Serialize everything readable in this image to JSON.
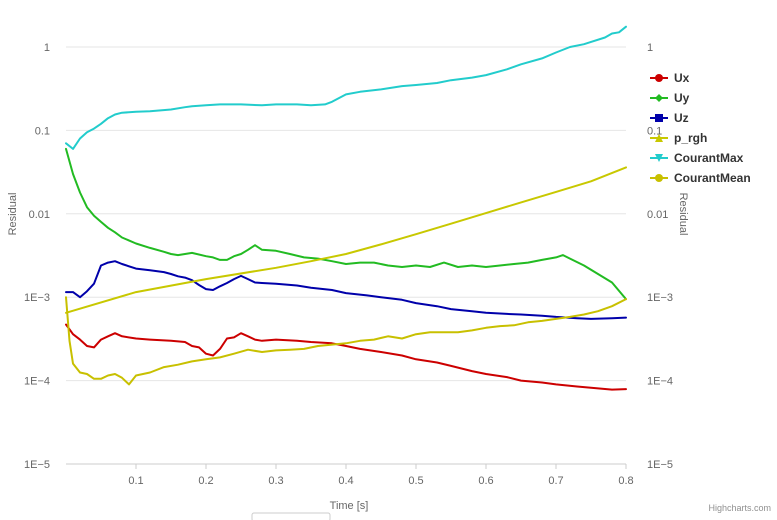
{
  "chart_data": {
    "type": "line",
    "x_axis": {
      "label": "Time [s]",
      "range": [
        0,
        0.8
      ],
      "ticks": [
        "0.1",
        "0.2",
        "0.3",
        "0.4",
        "0.5",
        "0.6",
        "0.7",
        "0.8"
      ]
    },
    "y_axis_left": {
      "label": "Residual",
      "scale": "log",
      "range": [
        1e-05,
        1
      ],
      "ticks": [
        "1E−5",
        "1E−4",
        "1E−3",
        "0.01",
        "0.1",
        "1"
      ]
    },
    "y_axis_right": {
      "label": "Residual",
      "scale": "log",
      "range": [
        1e-05,
        1
      ],
      "ticks": [
        "1E−5",
        "1E−4",
        "1E−3",
        "0.01",
        "0.1",
        "1"
      ]
    },
    "grid": true,
    "legend_position": "right",
    "credits": "Highcharts.com",
    "series": [
      {
        "name": "Ux",
        "color": "#cc0000",
        "marker": "circle",
        "x": [
          0,
          0.01,
          0.02,
          0.03,
          0.04,
          0.05,
          0.06,
          0.07,
          0.08,
          0.1,
          0.12,
          0.15,
          0.17,
          0.18,
          0.19,
          0.2,
          0.21,
          0.22,
          0.23,
          0.24,
          0.25,
          0.26,
          0.27,
          0.28,
          0.3,
          0.33,
          0.35,
          0.38,
          0.4,
          0.42,
          0.45,
          0.48,
          0.5,
          0.53,
          0.55,
          0.58,
          0.6,
          0.63,
          0.65,
          0.68,
          0.7,
          0.73,
          0.75,
          0.78,
          0.8
        ],
        "y": [
          0.00047,
          0.00036,
          0.00031,
          0.00026,
          0.00025,
          0.00031,
          0.00034,
          0.00037,
          0.00034,
          0.00032,
          0.00031,
          0.0003,
          0.00029,
          0.00026,
          0.00025,
          0.00021,
          0.0002,
          0.00024,
          0.00032,
          0.00033,
          0.00037,
          0.00034,
          0.00031,
          0.0003,
          0.00031,
          0.0003,
          0.00029,
          0.00028,
          0.00026,
          0.00024,
          0.00022,
          0.0002,
          0.00018,
          0.000165,
          0.00015,
          0.00013,
          0.00012,
          0.00011,
          0.0001,
          9.5e-05,
          9e-05,
          8.5e-05,
          8.2e-05,
          7.8e-05,
          7.9e-05
        ]
      },
      {
        "name": "Uy",
        "color": "#22bb22",
        "marker": "diamond",
        "x": [
          0,
          0.01,
          0.02,
          0.03,
          0.04,
          0.05,
          0.06,
          0.07,
          0.08,
          0.1,
          0.12,
          0.14,
          0.15,
          0.16,
          0.17,
          0.18,
          0.2,
          0.21,
          0.22,
          0.23,
          0.24,
          0.25,
          0.26,
          0.27,
          0.28,
          0.3,
          0.32,
          0.34,
          0.36,
          0.38,
          0.4,
          0.42,
          0.44,
          0.46,
          0.48,
          0.5,
          0.52,
          0.54,
          0.56,
          0.58,
          0.6,
          0.62,
          0.64,
          0.66,
          0.68,
          0.7,
          0.71,
          0.72,
          0.74,
          0.76,
          0.78,
          0.8
        ],
        "y": [
          0.06,
          0.03,
          0.018,
          0.012,
          0.0095,
          0.008,
          0.0068,
          0.006,
          0.0052,
          0.0044,
          0.0039,
          0.0035,
          0.0033,
          0.0032,
          0.0033,
          0.0034,
          0.0031,
          0.003,
          0.0028,
          0.0028,
          0.0031,
          0.0033,
          0.0037,
          0.0042,
          0.0037,
          0.0036,
          0.0033,
          0.003,
          0.0029,
          0.0027,
          0.0025,
          0.0026,
          0.0026,
          0.0024,
          0.0023,
          0.0024,
          0.0023,
          0.0026,
          0.0023,
          0.0024,
          0.0023,
          0.0024,
          0.0025,
          0.0026,
          0.0028,
          0.003,
          0.0032,
          0.0029,
          0.0024,
          0.0019,
          0.0015,
          0.00095
        ]
      },
      {
        "name": "Uz",
        "color": "#0000aa",
        "marker": "square",
        "x": [
          0,
          0.01,
          0.02,
          0.03,
          0.04,
          0.05,
          0.06,
          0.07,
          0.08,
          0.1,
          0.12,
          0.14,
          0.15,
          0.16,
          0.17,
          0.18,
          0.19,
          0.2,
          0.21,
          0.22,
          0.23,
          0.24,
          0.25,
          0.26,
          0.27,
          0.28,
          0.3,
          0.33,
          0.35,
          0.38,
          0.4,
          0.43,
          0.45,
          0.48,
          0.5,
          0.53,
          0.55,
          0.58,
          0.6,
          0.63,
          0.65,
          0.68,
          0.7,
          0.73,
          0.75,
          0.78,
          0.8
        ],
        "y": [
          0.00115,
          0.00115,
          0.001,
          0.00118,
          0.00145,
          0.0024,
          0.0026,
          0.0027,
          0.0025,
          0.0022,
          0.0021,
          0.002,
          0.0019,
          0.00178,
          0.00172,
          0.0016,
          0.0014,
          0.00125,
          0.00122,
          0.00135,
          0.00148,
          0.00165,
          0.0018,
          0.00165,
          0.0015,
          0.00148,
          0.00145,
          0.00138,
          0.0013,
          0.00122,
          0.00112,
          0.00105,
          0.001,
          0.00093,
          0.00085,
          0.00078,
          0.00072,
          0.00068,
          0.00065,
          0.00063,
          0.00062,
          0.0006,
          0.00058,
          0.00056,
          0.00055,
          0.00056,
          0.00057
        ]
      },
      {
        "name": "p_rgh",
        "color": "#c8c800",
        "marker": "triangle",
        "x": [
          0,
          0.1,
          0.2,
          0.3,
          0.35,
          0.4,
          0.45,
          0.5,
          0.55,
          0.6,
          0.65,
          0.7,
          0.75,
          0.8
        ],
        "y": [
          0.00065,
          0.00115,
          0.00165,
          0.00225,
          0.0027,
          0.0033,
          0.0043,
          0.0057,
          0.0076,
          0.0102,
          0.0137,
          0.0183,
          0.0245,
          0.036
        ]
      },
      {
        "name": "CourantMax",
        "color": "#22cccc",
        "marker": "triangle-down",
        "x": [
          0,
          0.01,
          0.02,
          0.03,
          0.04,
          0.05,
          0.06,
          0.07,
          0.08,
          0.1,
          0.12,
          0.15,
          0.17,
          0.18,
          0.2,
          0.22,
          0.25,
          0.28,
          0.3,
          0.33,
          0.35,
          0.37,
          0.38,
          0.4,
          0.42,
          0.45,
          0.48,
          0.5,
          0.53,
          0.55,
          0.58,
          0.6,
          0.63,
          0.65,
          0.68,
          0.7,
          0.72,
          0.74,
          0.75,
          0.77,
          0.78,
          0.79,
          0.8
        ],
        "y": [
          0.07,
          0.06,
          0.08,
          0.095,
          0.105,
          0.12,
          0.14,
          0.155,
          0.163,
          0.167,
          0.17,
          0.178,
          0.19,
          0.195,
          0.2,
          0.205,
          0.205,
          0.2,
          0.205,
          0.205,
          0.2,
          0.205,
          0.22,
          0.27,
          0.29,
          0.31,
          0.34,
          0.35,
          0.37,
          0.4,
          0.43,
          0.46,
          0.54,
          0.62,
          0.73,
          0.86,
          1.0,
          1.08,
          1.15,
          1.3,
          1.45,
          1.5,
          1.75
        ]
      },
      {
        "name": "CourantMean",
        "color": "#c8c000",
        "marker": "circle",
        "x": [
          0,
          0.005,
          0.01,
          0.02,
          0.03,
          0.04,
          0.05,
          0.06,
          0.07,
          0.08,
          0.09,
          0.1,
          0.11,
          0.12,
          0.14,
          0.16,
          0.18,
          0.2,
          0.22,
          0.24,
          0.26,
          0.28,
          0.3,
          0.32,
          0.34,
          0.36,
          0.38,
          0.4,
          0.42,
          0.44,
          0.46,
          0.48,
          0.5,
          0.52,
          0.54,
          0.56,
          0.58,
          0.6,
          0.62,
          0.64,
          0.66,
          0.68,
          0.7,
          0.72,
          0.74,
          0.76,
          0.78,
          0.8
        ],
        "y": [
          0.001,
          0.0003,
          0.00016,
          0.000125,
          0.00012,
          0.000105,
          0.000105,
          0.000115,
          0.00012,
          0.000108,
          9e-05,
          0.000115,
          0.00012,
          0.000125,
          0.000145,
          0.000155,
          0.00017,
          0.00018,
          0.00019,
          0.00021,
          0.000235,
          0.00022,
          0.00023,
          0.000235,
          0.00024,
          0.00026,
          0.00027,
          0.00028,
          0.0003,
          0.00031,
          0.00034,
          0.00032,
          0.00036,
          0.00038,
          0.00038,
          0.00038,
          0.0004,
          0.00043,
          0.00045,
          0.00046,
          0.0005,
          0.00052,
          0.00055,
          0.00058,
          0.00062,
          0.00068,
          0.00078,
          0.00095
        ]
      }
    ]
  }
}
